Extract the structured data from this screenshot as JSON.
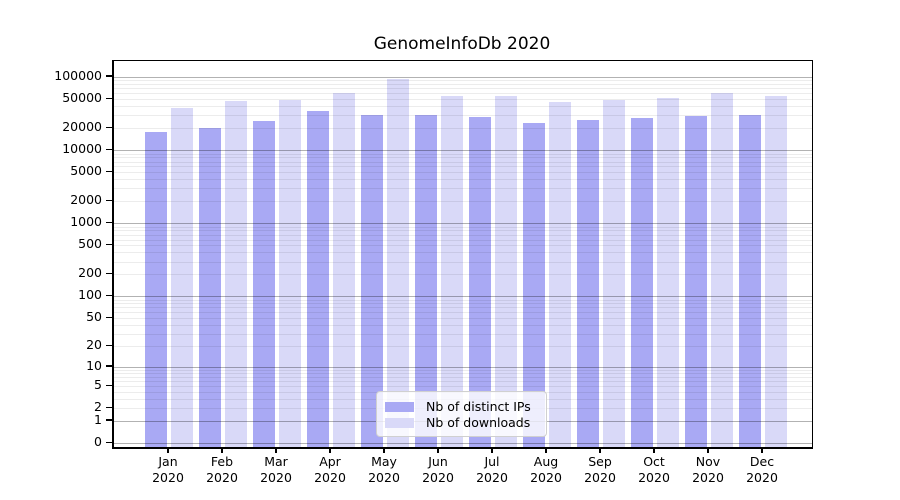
{
  "chart_data": {
    "type": "bar",
    "title": "GenomeInfoDb 2020",
    "year_label": "2020",
    "categories": [
      "Jan",
      "Feb",
      "Mar",
      "Apr",
      "May",
      "Jun",
      "Jul",
      "Aug",
      "Sep",
      "Oct",
      "Nov",
      "Dec"
    ],
    "series": [
      {
        "name": "Nb of distinct IPs",
        "color": "#a9a9f4",
        "values": [
          17900,
          19900,
          25300,
          34000,
          30500,
          30200,
          28600,
          23600,
          25600,
          27900,
          29800,
          30000
        ]
      },
      {
        "name": "Nb of downloads",
        "color": "#d9d9f8",
        "values": [
          37200,
          47500,
          47900,
          59800,
          95300,
          55000,
          55300,
          45000,
          48400,
          50900,
          61200,
          55700
        ]
      }
    ],
    "yscale": "log10(1+v)",
    "ylim": [
      0,
      165000
    ],
    "yticks": [
      0,
      1,
      2,
      5,
      10,
      20,
      50,
      100,
      200,
      500,
      1000,
      2000,
      5000,
      10000,
      20000,
      50000,
      100000
    ],
    "grid": {
      "major_gridlines_at": [
        0,
        1,
        10,
        100,
        1000,
        10000,
        100000
      ],
      "minor_gridlines": "2-9 times each power of ten",
      "major_color": "#b0b0b0",
      "minor_color": "#ececec"
    },
    "legend_position": "inside bottom-center",
    "xlabel": "",
    "ylabel": ""
  }
}
